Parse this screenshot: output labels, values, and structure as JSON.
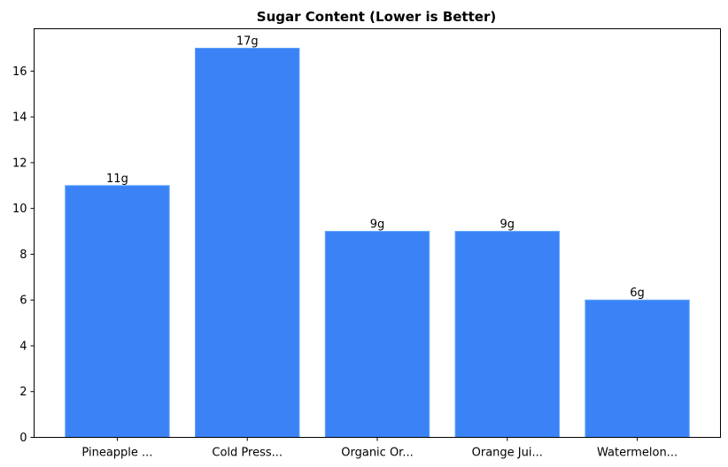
{
  "chart_data": {
    "type": "bar",
    "title": "Sugar Content (Lower is Better)",
    "xlabel": "",
    "ylabel": "",
    "categories": [
      "Pineapple ...",
      "Cold Press...",
      "Organic Or...",
      "Orange Jui...",
      "Watermelon..."
    ],
    "values": [
      11,
      17,
      9,
      9,
      6
    ],
    "data_labels": [
      "11g",
      "17g",
      "9g",
      "9g",
      "6g"
    ],
    "ylim": [
      0,
      17.85
    ],
    "yticks": [
      0,
      2,
      4,
      6,
      8,
      10,
      12,
      14,
      16
    ],
    "grid": false,
    "bar_color": "#3b82f6",
    "bar_edge_color": "#60a5fa"
  }
}
